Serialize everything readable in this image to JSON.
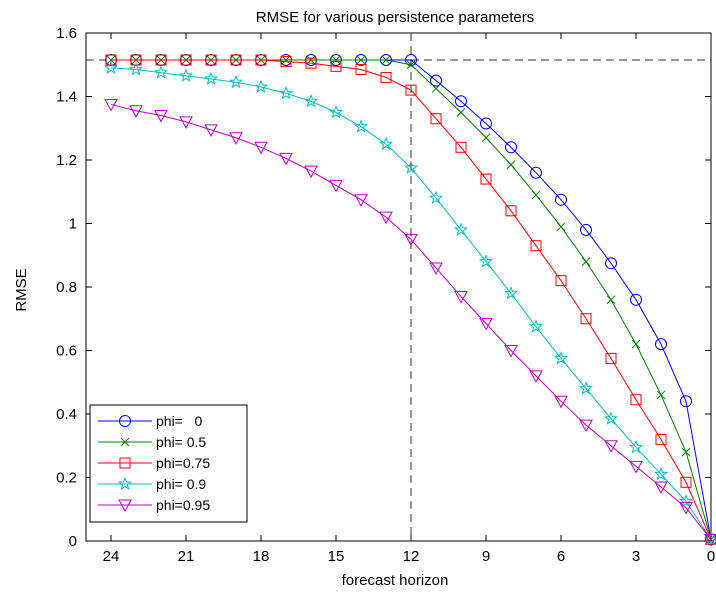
{
  "chart_data": {
    "type": "line",
    "title": "RMSE for various persistence parameters",
    "xlabel": "forecast horizon",
    "ylabel": "RMSE",
    "x_reversed": true,
    "xlim": [
      0,
      25
    ],
    "ylim": [
      0,
      1.6
    ],
    "xticks": [
      24,
      21,
      18,
      15,
      12,
      9,
      6,
      3,
      0
    ],
    "xtick_labels": [
      "24",
      "21",
      "18",
      "15",
      "12",
      "9",
      "6",
      "3",
      "0"
    ],
    "yticks": [
      0,
      0.2,
      0.4,
      0.6,
      0.8,
      1,
      1.2,
      1.4,
      1.6
    ],
    "ytick_labels": [
      "0",
      "0.2",
      "0.4",
      "0.6",
      "0.8",
      "1",
      "1.2",
      "1.4",
      "1.6"
    ],
    "grid": false,
    "legend_position": "bottom-left",
    "x": [
      24,
      23,
      22,
      21,
      20,
      19,
      18,
      17,
      16,
      15,
      14,
      13,
      12,
      11,
      10,
      9,
      8,
      7,
      6,
      5,
      4,
      3,
      2,
      1,
      0
    ],
    "reference_lines": [
      {
        "orientation": "horizontal",
        "value": 1.515
      },
      {
        "orientation": "vertical",
        "value": 12
      }
    ],
    "series": [
      {
        "name": "phi=   0",
        "color": "#0000ff",
        "marker": "circle",
        "values": [
          1.515,
          1.515,
          1.515,
          1.515,
          1.515,
          1.515,
          1.515,
          1.515,
          1.515,
          1.515,
          1.515,
          1.515,
          1.515,
          1.45,
          1.385,
          1.315,
          1.24,
          1.16,
          1.075,
          0.98,
          0.875,
          0.76,
          0.62,
          0.44,
          0.005
        ]
      },
      {
        "name": "phi= 0.5",
        "color": "#008000",
        "marker": "x",
        "values": [
          1.515,
          1.515,
          1.515,
          1.515,
          1.515,
          1.515,
          1.515,
          1.515,
          1.515,
          1.515,
          1.515,
          1.515,
          1.5,
          1.425,
          1.35,
          1.27,
          1.185,
          1.09,
          0.99,
          0.88,
          0.76,
          0.62,
          0.46,
          0.28,
          0.005
        ]
      },
      {
        "name": "phi=0.75",
        "color": "#ff0000",
        "marker": "square",
        "values": [
          1.515,
          1.515,
          1.515,
          1.515,
          1.515,
          1.515,
          1.515,
          1.51,
          1.505,
          1.495,
          1.485,
          1.46,
          1.42,
          1.33,
          1.24,
          1.14,
          1.04,
          0.93,
          0.82,
          0.7,
          0.575,
          0.445,
          0.32,
          0.185,
          0.005
        ]
      },
      {
        "name": "phi= 0.9",
        "color": "#00bfbf",
        "marker": "star",
        "values": [
          1.49,
          1.485,
          1.475,
          1.465,
          1.455,
          1.445,
          1.43,
          1.41,
          1.385,
          1.35,
          1.305,
          1.25,
          1.175,
          1.08,
          0.98,
          0.88,
          0.78,
          0.675,
          0.575,
          0.48,
          0.385,
          0.295,
          0.21,
          0.125,
          0.005
        ]
      },
      {
        "name": "phi=0.95",
        "color": "#bf00bf",
        "marker": "triangle-down",
        "values": [
          1.375,
          1.355,
          1.34,
          1.32,
          1.295,
          1.27,
          1.24,
          1.205,
          1.165,
          1.12,
          1.075,
          1.02,
          0.95,
          0.86,
          0.77,
          0.685,
          0.6,
          0.52,
          0.44,
          0.365,
          0.3,
          0.235,
          0.17,
          0.105,
          0.005
        ]
      }
    ]
  }
}
